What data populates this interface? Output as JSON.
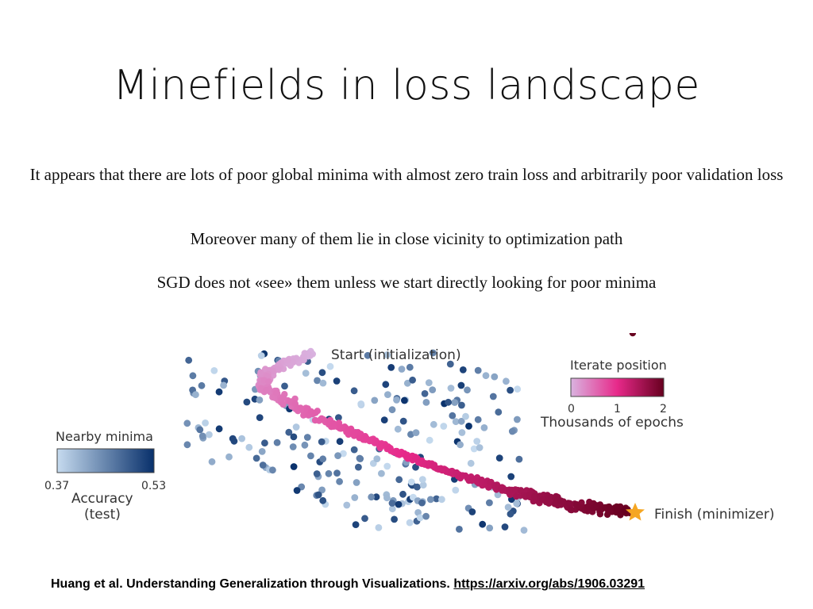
{
  "slide": {
    "title": "Minefields in loss landscape",
    "paragraphs": [
      "It appears that there are lots of poor global minima with almost zero train loss and arbitrarily poor validation loss",
      "Moreover many of them lie in close vicinity to optimization path",
      "SGD does not «see» them unless we start directly looking for poor minima"
    ],
    "citation": {
      "text": "Huang et al. Understanding Generalization through Visualizations.",
      "link": "https://arxiv.org/abs/1906.03291"
    }
  },
  "figure": {
    "start_label": "Start (initialization)",
    "finish_label": "Finish (minimizer)",
    "nearby_legend": {
      "title": "Nearby minima",
      "min_label": "0.37",
      "max_label": "0.53",
      "axis_label_line1": "Accuracy",
      "axis_label_line2": "(test)",
      "color_low": "#c6dbef",
      "color_high": "#08306b"
    },
    "iterate_legend": {
      "title": "Iterate position",
      "ticks": [
        "0",
        "1",
        "2"
      ],
      "axis_label": "Thousands of epochs",
      "color_low": "#d9b3e0",
      "color_mid": "#e7298a",
      "color_high": "#67001f"
    },
    "star_color": "#f5a623"
  }
}
